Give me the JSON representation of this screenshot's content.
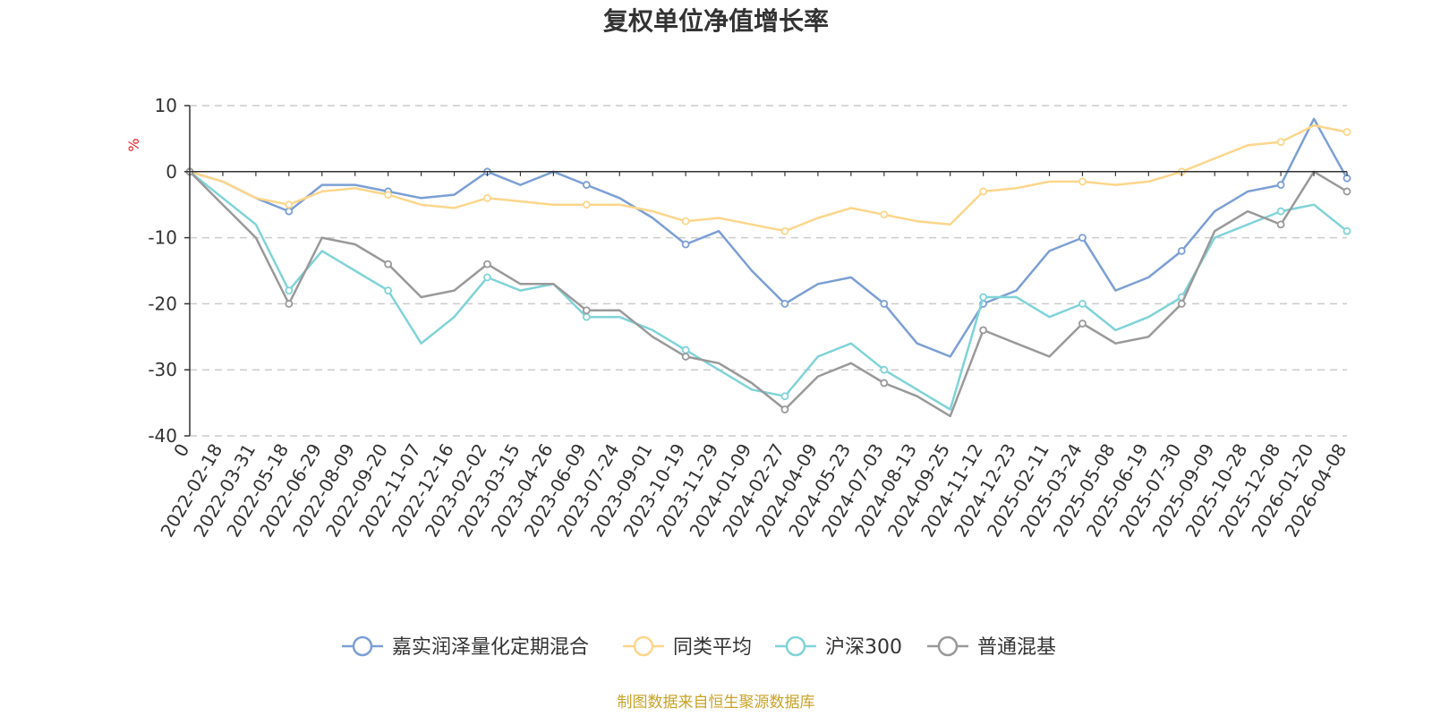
{
  "chart_data": {
    "type": "line",
    "title": "复权单位净值增长率",
    "ylabel": "%",
    "ylim": [
      -40,
      10
    ],
    "yticks": [
      10,
      0,
      -10,
      -20,
      -30,
      -40
    ],
    "grid": true,
    "legend_position": "bottom",
    "x": [
      "0",
      "2022-02-18",
      "2022-03-31",
      "2022-05-18",
      "2022-06-29",
      "2022-08-09",
      "2022-09-20",
      "2022-11-07",
      "2022-12-16",
      "2023-02-02",
      "2023-03-15",
      "2023-04-26",
      "2023-06-09",
      "2023-07-24",
      "2023-09-01",
      "2023-10-19",
      "2023-11-29",
      "2024-01-09",
      "2024-02-27",
      "2024-04-09",
      "2024-05-23",
      "2024-07-03",
      "2024-08-13",
      "2024-09-25",
      "2024-11-12",
      "2024-12-23",
      "2025-02-11",
      "2025-03-24",
      "2025-05-08",
      "2025-06-19",
      "2025-07-30",
      "2025-09-09",
      "2025-10-28",
      "2025-12-08",
      "2026-01-20",
      "2026-04-08"
    ],
    "series": [
      {
        "name": "嘉实润泽量化定期混合",
        "color": "#7b9fd4",
        "values": [
          0,
          -1.5,
          -4,
          -6,
          -2,
          -2,
          -3,
          -4,
          -3.5,
          0,
          -2,
          0,
          -2,
          -4,
          -7,
          -11,
          -9,
          -15,
          -20,
          -17,
          -16,
          -20,
          -26,
          -28,
          -20,
          -18,
          -12,
          -10,
          -18,
          -16,
          -12,
          -6,
          -3,
          -2,
          8,
          -1
        ]
      },
      {
        "name": "同类平均",
        "color": "#fcd68b",
        "values": [
          0,
          -1.5,
          -4,
          -5,
          -3,
          -2.5,
          -3.5,
          -5,
          -5.5,
          -4,
          -4.5,
          -5,
          -5,
          -5,
          -6,
          -7.5,
          -7,
          -8,
          -9,
          -7,
          -5.5,
          -6.5,
          -7.5,
          -8,
          -3,
          -2.5,
          -1.5,
          -1.5,
          -2,
          -1.5,
          0,
          2,
          4,
          4.5,
          7,
          6
        ]
      },
      {
        "name": "沪深300",
        "color": "#7fd3d8",
        "values": [
          0,
          -4,
          -8,
          -18,
          -12,
          -15,
          -18,
          -26,
          -22,
          -16,
          -18,
          -17,
          -22,
          -22,
          -24,
          -27,
          -30,
          -33,
          -34,
          -28,
          -26,
          -30,
          -33,
          -36,
          -19,
          -19,
          -22,
          -20,
          -24,
          -22,
          -19,
          -10,
          -8,
          -6,
          -5,
          -9
        ]
      },
      {
        "name": "普通混基",
        "color": "#999999",
        "values": [
          0,
          -5,
          -10,
          -20,
          -10,
          -11,
          -14,
          -19,
          -18,
          -14,
          -17,
          -17,
          -21,
          -21,
          -25,
          -28,
          -29,
          -32,
          -36,
          -31,
          -29,
          -32,
          -34,
          -37,
          -24,
          -26,
          -28,
          -23,
          -26,
          -25,
          -20,
          -9,
          -6,
          -8,
          0,
          -3
        ]
      }
    ]
  },
  "source": "制图数据来自恒生聚源数据库"
}
